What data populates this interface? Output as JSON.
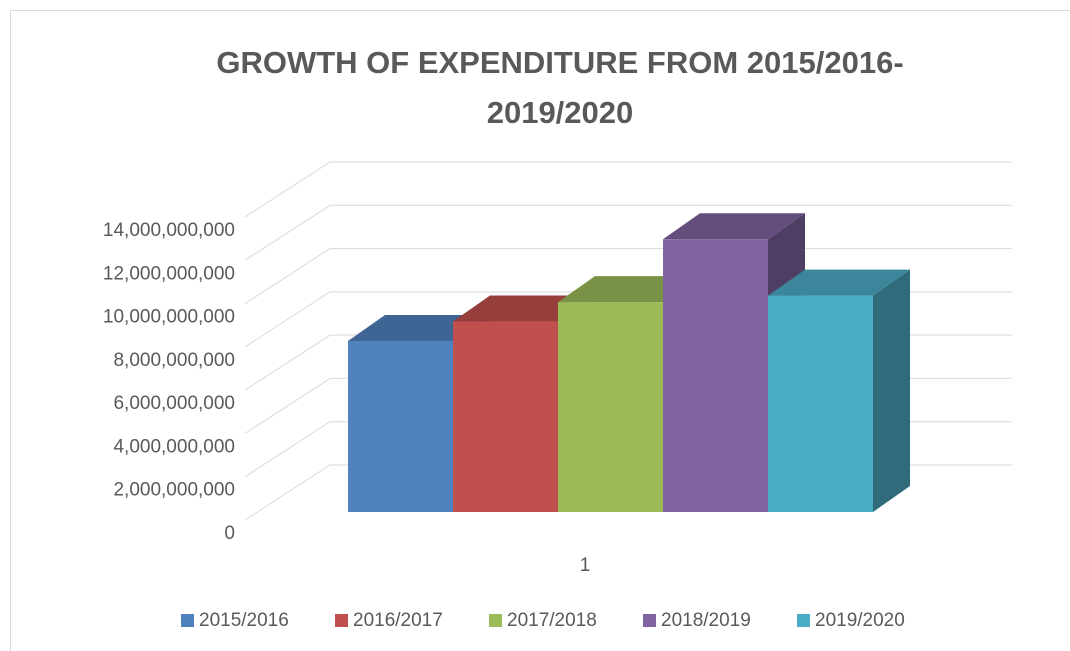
{
  "chart_data": {
    "type": "bar3d",
    "title": "GROWTH OF EXPENDITURE FROM 2015/2016-2019/2020",
    "categories": [
      "1"
    ],
    "series": [
      {
        "name": "2015/2016",
        "color": "#4f81bd",
        "values": [
          7900000000
        ]
      },
      {
        "name": "2016/2017",
        "color": "#c0504d",
        "values": [
          8800000000
        ]
      },
      {
        "name": "2017/2018",
        "color": "#9bbb59",
        "values": [
          9700000000
        ]
      },
      {
        "name": "2018/2019",
        "color": "#8064a2",
        "values": [
          12600000000
        ]
      },
      {
        "name": "2019/2020",
        "color": "#4bacc6",
        "values": [
          10000000000
        ]
      }
    ],
    "ylim": [
      0,
      14000000000
    ],
    "yticks": [
      0,
      {
        "value": 2000000000,
        "label": "2,000,000,000"
      },
      {
        "value": 4000000000,
        "label": "4,000,000,000"
      },
      {
        "value": 6000000000,
        "label": "6,000,000,000"
      },
      {
        "value": 8000000000,
        "label": "8,000,000,000"
      },
      {
        "value": 10000000000,
        "label": "10,000,000,000"
      },
      {
        "value": 12000000000,
        "label": "12,000,000,000"
      },
      {
        "value": 14000000000,
        "label": "14,000,000,000"
      }
    ],
    "grid": true,
    "legend": "bottom"
  }
}
